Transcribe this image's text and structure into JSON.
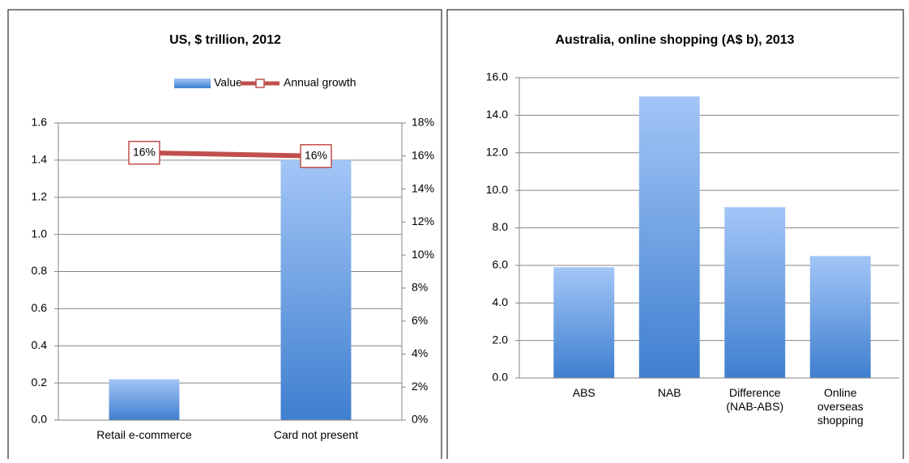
{
  "chart_data": [
    {
      "type": "bar",
      "title": "US, $ trillion, 2012",
      "categories": [
        "Retail e-commerce",
        "Card not present"
      ],
      "series": [
        {
          "name": "Value",
          "color": "#4f81bd",
          "values": [
            0.22,
            1.4
          ]
        },
        {
          "name": "Annual growth",
          "type": "line",
          "axis": "y2",
          "color": "#c0504d",
          "values": [
            16.2,
            16
          ],
          "value_labels": [
            "16%",
            "16%"
          ]
        }
      ],
      "ylim": [
        0,
        1.6
      ],
      "yticks": [
        {
          "value": 0,
          "label": "0.0"
        },
        {
          "value": 0.2,
          "label": "0.2"
        },
        {
          "value": 0.4,
          "label": "0.4"
        },
        {
          "value": 0.6,
          "label": "0.6"
        },
        {
          "value": 0.8,
          "label": "0.8"
        },
        {
          "value": 1,
          "label": "1.0"
        },
        {
          "value": 1.2,
          "label": "1.2"
        },
        {
          "value": 1.4,
          "label": "1.4"
        },
        {
          "value": 1.6,
          "label": "1.6"
        }
      ],
      "y2lim": [
        0,
        18
      ],
      "y2ticks": [
        {
          "value": 0,
          "label": "0%"
        },
        {
          "value": 2,
          "label": "2%"
        },
        {
          "value": 4,
          "label": "4%"
        },
        {
          "value": 6,
          "label": "6%"
        },
        {
          "value": 8,
          "label": "8%"
        },
        {
          "value": 10,
          "label": "10%"
        },
        {
          "value": 12,
          "label": "12%"
        },
        {
          "value": 14,
          "label": "14%"
        },
        {
          "value": 16,
          "label": "16%"
        },
        {
          "value": 18,
          "label": "18%"
        }
      ],
      "legend": "top",
      "grid": true
    },
    {
      "type": "bar",
      "title": "Australia, online shopping (A$ b), 2013",
      "categories": [
        "ABS",
        "NAB",
        "Difference (NAB-ABS)",
        "Online overseas shopping"
      ],
      "values": [
        5.9,
        15.0,
        9.1,
        6.5
      ],
      "color": "#4f81bd",
      "ylim": [
        0,
        16
      ],
      "yticks": [
        {
          "value": 0,
          "label": "0.0"
        },
        {
          "value": 2,
          "label": "2.0"
        },
        {
          "value": 4,
          "label": "4.0"
        },
        {
          "value": 6,
          "label": "6.0"
        },
        {
          "value": 8,
          "label": "8.0"
        },
        {
          "value": 10,
          "label": "10.0"
        },
        {
          "value": 12,
          "label": "12.0"
        },
        {
          "value": 14,
          "label": "14.0"
        },
        {
          "value": 16,
          "label": "16.0"
        }
      ],
      "grid": true
    }
  ]
}
